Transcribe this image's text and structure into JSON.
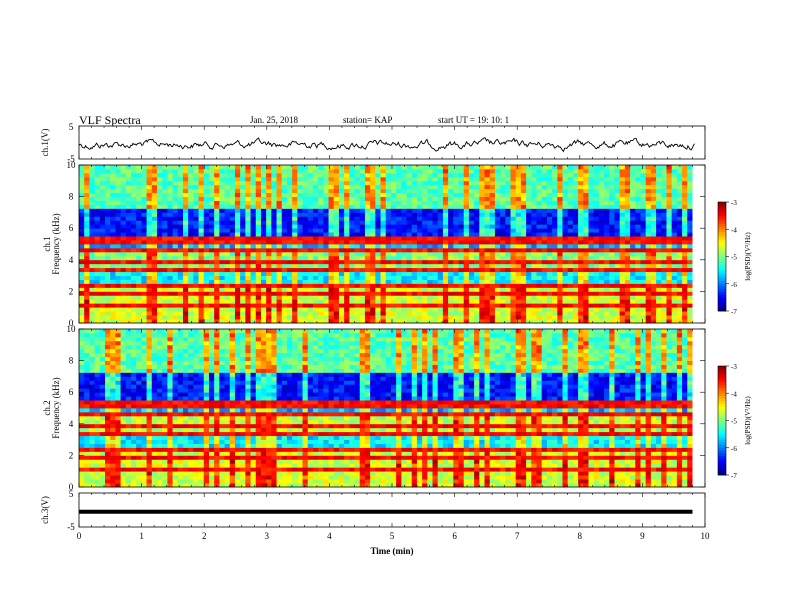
{
  "header": {
    "title": "VLF Spectra",
    "date": "Jan. 25, 2018",
    "station": "station= KAP",
    "start": "start  UT =   19: 10: 1"
  },
  "chart_data": [
    {
      "type": "line",
      "panel": "ch1-waveform",
      "ylabel": "ch.1(V)",
      "yticks": [
        "5",
        "-5"
      ],
      "ylim": [
        -5,
        5
      ],
      "xlim": [
        0,
        10
      ],
      "series": [
        {
          "values": "continuous noisy voltage trace fluctuating around 0 V",
          "color": "#000000"
        }
      ]
    },
    {
      "type": "heatmap",
      "panel": "ch1-spectrogram",
      "ylabel_line1": "ch.1",
      "ylabel_line2": "Frequency (kHz)",
      "yticks": [
        "0",
        "2",
        "4",
        "6",
        "8",
        "10"
      ],
      "ylim": [
        0,
        10
      ],
      "xlim": [
        0,
        9.8
      ],
      "colorbar": {
        "label": "log(PSD)(V²/Hz)",
        "ticks": [
          "-3",
          "-4",
          "-5",
          "-6",
          "-7"
        ],
        "range": [
          -7,
          -3
        ]
      }
    },
    {
      "type": "heatmap",
      "panel": "ch2-spectrogram",
      "ylabel_line1": "ch.2",
      "ylabel_line2": "Frequency (kHz)",
      "yticks": [
        "0",
        "2",
        "4",
        "6",
        "8",
        "10"
      ],
      "ylim": [
        0,
        10
      ],
      "xlim": [
        0,
        9.8
      ],
      "colorbar": {
        "label": "log(PSD)(V²/Hz)",
        "ticks": [
          "-3",
          "-4",
          "-5",
          "-6",
          "-7"
        ],
        "range": [
          -7,
          -3
        ]
      }
    },
    {
      "type": "line",
      "panel": "ch3-waveform",
      "ylabel": "ch.3(V)",
      "yticks": [
        "5",
        "-5"
      ],
      "ylim": [
        -5,
        5
      ],
      "xlim": [
        0,
        10
      ],
      "series": [
        {
          "values": "flat constant level near -1 V",
          "color": "#000000"
        }
      ]
    }
  ],
  "x_axis": {
    "label": "Time (min)",
    "ticks": [
      "0",
      "1",
      "2",
      "3",
      "4",
      "5",
      "6",
      "7",
      "8",
      "9",
      "10"
    ]
  }
}
